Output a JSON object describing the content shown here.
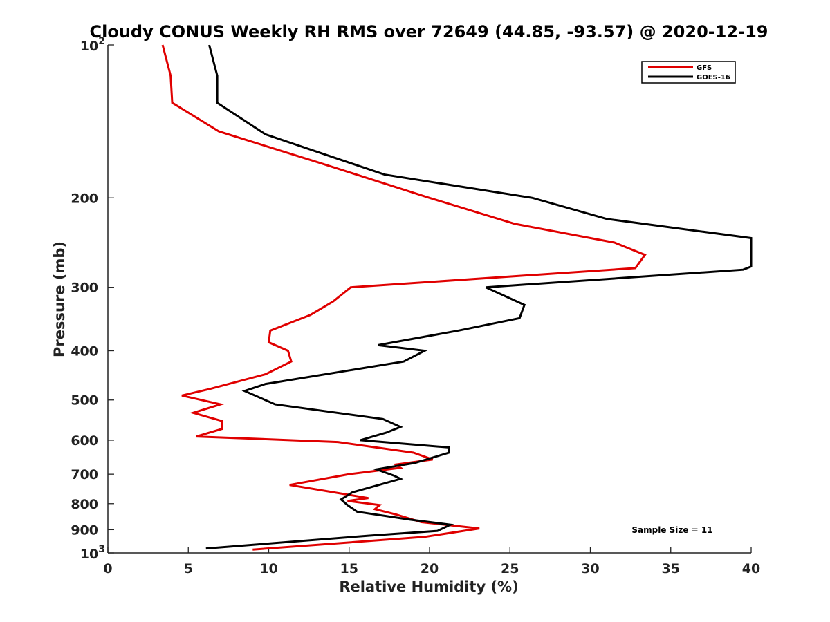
{
  "chart_data": {
    "type": "line",
    "title": "Cloudy CONUS Weekly RH RMS over 72649 (44.85, -93.57) @ 2020-12-19",
    "xlabel": "Relative Humidity (%)",
    "ylabel": "Pressure (mb)",
    "xlim": [
      0,
      40
    ],
    "ylim": [
      100,
      1000
    ],
    "y_scale": "log",
    "y_reversed": true,
    "grid": false,
    "legend_position": "top-right",
    "x_ticks": [
      0,
      5,
      10,
      15,
      20,
      25,
      30,
      35,
      40
    ],
    "y_ticks": [
      {
        "value": 100,
        "base": "10",
        "exp": "2"
      },
      {
        "value": 200,
        "label": "200"
      },
      {
        "value": 300,
        "label": "300"
      },
      {
        "value": 400,
        "label": "400"
      },
      {
        "value": 500,
        "label": "500"
      },
      {
        "value": 600,
        "label": "600"
      },
      {
        "value": 700,
        "label": "700"
      },
      {
        "value": 800,
        "label": "800"
      },
      {
        "value": 900,
        "label": "900"
      },
      {
        "value": 1000,
        "base": "10",
        "exp": "3"
      }
    ],
    "series": [
      {
        "name": "GFS",
        "color": "#e00000",
        "points": [
          [
            3.4,
            100
          ],
          [
            3.9,
            115
          ],
          [
            4.0,
            130
          ],
          [
            6.9,
            148
          ],
          [
            13.0,
            170
          ],
          [
            20.0,
            200
          ],
          [
            25.3,
            225
          ],
          [
            31.5,
            245
          ],
          [
            33.4,
            259
          ],
          [
            32.8,
            275
          ],
          [
            15.1,
            300
          ],
          [
            14.0,
            320
          ],
          [
            12.6,
            340
          ],
          [
            10.1,
            365
          ],
          [
            10.0,
            385
          ],
          [
            11.2,
            400
          ],
          [
            11.4,
            420
          ],
          [
            9.8,
            445
          ],
          [
            6.4,
            475
          ],
          [
            4.6,
            490
          ],
          [
            7.0,
            510
          ],
          [
            5.3,
            530
          ],
          [
            7.1,
            550
          ],
          [
            7.1,
            570
          ],
          [
            5.5,
            590
          ],
          [
            14.3,
            605
          ],
          [
            19.0,
            635
          ],
          [
            20.2,
            655
          ],
          [
            17.9,
            670
          ],
          [
            18.2,
            680
          ],
          [
            15.0,
            700
          ],
          [
            11.3,
            735
          ],
          [
            14.6,
            765
          ],
          [
            16.2,
            780
          ],
          [
            14.9,
            790
          ],
          [
            16.9,
            805
          ],
          [
            16.6,
            820
          ],
          [
            17.9,
            840
          ],
          [
            19.5,
            870
          ],
          [
            23.1,
            895
          ],
          [
            19.7,
            930
          ],
          [
            9.0,
            985
          ]
        ]
      },
      {
        "name": "GOES-16",
        "color": "#000000",
        "points": [
          [
            6.3,
            100
          ],
          [
            6.8,
            115
          ],
          [
            6.8,
            130
          ],
          [
            9.8,
            150
          ],
          [
            17.2,
            180
          ],
          [
            26.4,
            200
          ],
          [
            31.0,
            220
          ],
          [
            40.0,
            240
          ],
          [
            40.0,
            273
          ],
          [
            39.5,
            277
          ],
          [
            23.5,
            300
          ],
          [
            25.9,
            325
          ],
          [
            25.6,
            345
          ],
          [
            21.8,
            365
          ],
          [
            16.8,
            390
          ],
          [
            19.7,
            400
          ],
          [
            18.4,
            420
          ],
          [
            9.8,
            465
          ],
          [
            8.5,
            480
          ],
          [
            10.4,
            510
          ],
          [
            17.1,
            545
          ],
          [
            18.2,
            565
          ],
          [
            17.3,
            580
          ],
          [
            15.7,
            600
          ],
          [
            21.2,
            620
          ],
          [
            21.2,
            635
          ],
          [
            19.1,
            665
          ],
          [
            16.7,
            685
          ],
          [
            17.8,
            705
          ],
          [
            18.2,
            715
          ],
          [
            15.2,
            760
          ],
          [
            14.5,
            785
          ],
          [
            14.9,
            805
          ],
          [
            15.5,
            830
          ],
          [
            18.8,
            860
          ],
          [
            21.3,
            880
          ],
          [
            20.5,
            905
          ],
          [
            16.2,
            925
          ],
          [
            6.1,
            980
          ]
        ]
      }
    ],
    "annotation": "Sample Size = 11"
  }
}
